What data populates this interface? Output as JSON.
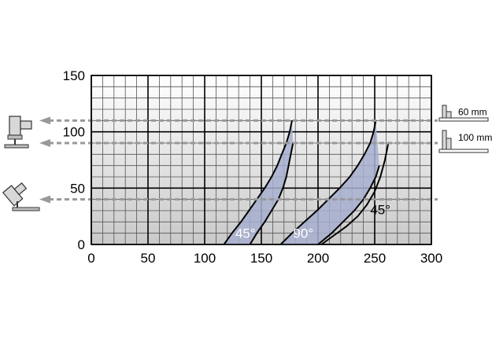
{
  "chart_data": {
    "type": "line",
    "title": "",
    "xlabel": "",
    "ylabel": "",
    "xlim": [
      0,
      300
    ],
    "ylim": [
      0,
      150
    ],
    "x_ticks": [
      0,
      50,
      100,
      150,
      200,
      250,
      300
    ],
    "y_ticks": [
      0,
      50,
      100,
      150
    ],
    "grid": true,
    "minor_grid_step": 10,
    "colors": {
      "band_fill": "#a7afcf",
      "curve": "#000000",
      "reference_line": "#999999"
    },
    "reference_lines": [
      {
        "y": 110,
        "label": "60 mm",
        "icon": "saw-vertical-icon"
      },
      {
        "y": 90,
        "label": "100 mm",
        "icon": "fence-icon"
      },
      {
        "y": 40,
        "label": "",
        "icon": "saw-tilted-icon"
      }
    ],
    "bands": [
      {
        "label": "45°",
        "curves": [
          {
            "points": [
              [
                117,
                0
              ],
              [
                124,
                10
              ],
              [
                132,
                20
              ],
              [
                139,
                30
              ],
              [
                146,
                40
              ],
              [
                153,
                50
              ],
              [
                159,
                60
              ],
              [
                164,
                70
              ],
              [
                168,
                80
              ],
              [
                172,
                90
              ],
              [
                175,
                100
              ],
              [
                177,
                110
              ]
            ]
          },
          {
            "points": [
              [
                140,
                0
              ],
              [
                146,
                10
              ],
              [
                153,
                20
              ],
              [
                159,
                30
              ],
              [
                165,
                40
              ],
              [
                169,
                50
              ],
              [
                172,
                60
              ],
              [
                174,
                70
              ],
              [
                176,
                80
              ],
              [
                178,
                90
              ]
            ]
          }
        ]
      },
      {
        "label": "90°",
        "curves": [
          {
            "points": [
              [
                167,
                0
              ],
              [
                177,
                10
              ],
              [
                188,
                20
              ],
              [
                199,
                30
              ],
              [
                209,
                40
              ],
              [
                219,
                50
              ],
              [
                228,
                60
              ],
              [
                235,
                70
              ],
              [
                241,
                80
              ],
              [
                246,
                90
              ],
              [
                249,
                100
              ],
              [
                251,
                110
              ]
            ]
          },
          {
            "points": [
              [
                200,
                0
              ],
              [
                212,
                10
              ],
              [
                222,
                20
              ],
              [
                232,
                30
              ],
              [
                240,
                40
              ],
              [
                246,
                50
              ],
              [
                251,
                60
              ],
              [
                254,
                70
              ]
            ]
          }
        ]
      },
      {
        "label": "45°",
        "curves": [
          {
            "points": [
              [
                203,
                0
              ],
              [
                214,
                8
              ],
              [
                225,
                16
              ],
              [
                235,
                25
              ],
              [
                243,
                35
              ],
              [
                250,
                47
              ],
              [
                255,
                60
              ],
              [
                259,
                75
              ],
              [
                262,
                90
              ]
            ]
          }
        ]
      }
    ]
  }
}
